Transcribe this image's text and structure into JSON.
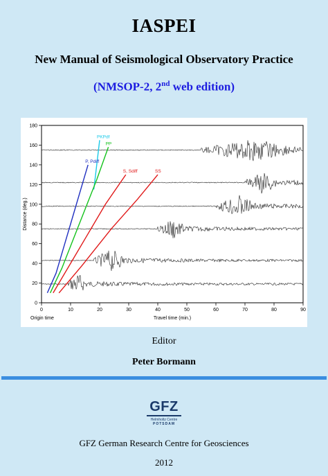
{
  "cover": {
    "title": "IASPEI",
    "subtitle": "New Manual of Seismological Observatory Practice",
    "edition_prefix": "(NMSOP-2, 2",
    "edition_sup": "nd",
    "edition_suffix": " web edition)",
    "editor_label": "Editor",
    "editor_name": "Peter Bormann",
    "organization": "GFZ German Research Centre for Geosciences",
    "year": "2012",
    "colors": {
      "background": "#cfe8f5",
      "edition_text": "#1c1ce0",
      "rule": "#3b8ee0",
      "logo": "#1a3a6a"
    }
  },
  "logo": {
    "text": "GFZ",
    "line1": "Helmholtz Centre",
    "line2": "POTSDAM"
  },
  "chart_data": {
    "type": "line",
    "xlabel": "Travel time (min.)",
    "ylabel": "Distance (deg.)",
    "origin_label": "Origin time",
    "xlim": [
      0,
      90
    ],
    "ylim": [
      0,
      180
    ],
    "x_ticks": [
      0,
      10,
      20,
      30,
      40,
      50,
      60,
      70,
      80,
      90
    ],
    "y_ticks": [
      0,
      20,
      40,
      60,
      80,
      100,
      120,
      140,
      160,
      180
    ],
    "traces": [
      {
        "distance": 19,
        "burst_start": 9,
        "burst_end": 16
      },
      {
        "distance": 43,
        "burst_start": 18,
        "burst_end": 30
      },
      {
        "distance": 75,
        "burst_start": 40,
        "burst_end": 50
      },
      {
        "distance": 98,
        "burst_start": 60,
        "burst_end": 75
      },
      {
        "distance": 122,
        "burst_start": 70,
        "burst_end": 82
      },
      {
        "distance": 155,
        "burst_start": 55,
        "burst_end": 90
      }
    ],
    "series": [
      {
        "name": "P, Pdiff",
        "color": "#1f2fc0",
        "points": [
          [
            2,
            10
          ],
          [
            5,
            30
          ],
          [
            8,
            60
          ],
          [
            11,
            90
          ],
          [
            14,
            120
          ],
          [
            16,
            140
          ]
        ]
      },
      {
        "name": "PKPdf",
        "color": "#19c9e8",
        "points": [
          [
            18,
            115
          ],
          [
            20,
            165
          ]
        ]
      },
      {
        "name": "PP",
        "color": "#13c21b",
        "points": [
          [
            3,
            10
          ],
          [
            7,
            35
          ],
          [
            11,
            65
          ],
          [
            15,
            95
          ],
          [
            19,
            125
          ],
          [
            23,
            158
          ]
        ]
      },
      {
        "name": "S, Sdiff",
        "color": "#e01919",
        "points": [
          [
            4,
            10
          ],
          [
            10,
            40
          ],
          [
            16,
            70
          ],
          [
            22,
            100
          ],
          [
            29,
            130
          ]
        ]
      },
      {
        "name": "SS",
        "color": "#e01919",
        "points": [
          [
            6,
            10
          ],
          [
            14,
            38
          ],
          [
            24,
            75
          ],
          [
            33,
            105
          ],
          [
            40,
            130
          ]
        ]
      }
    ]
  }
}
